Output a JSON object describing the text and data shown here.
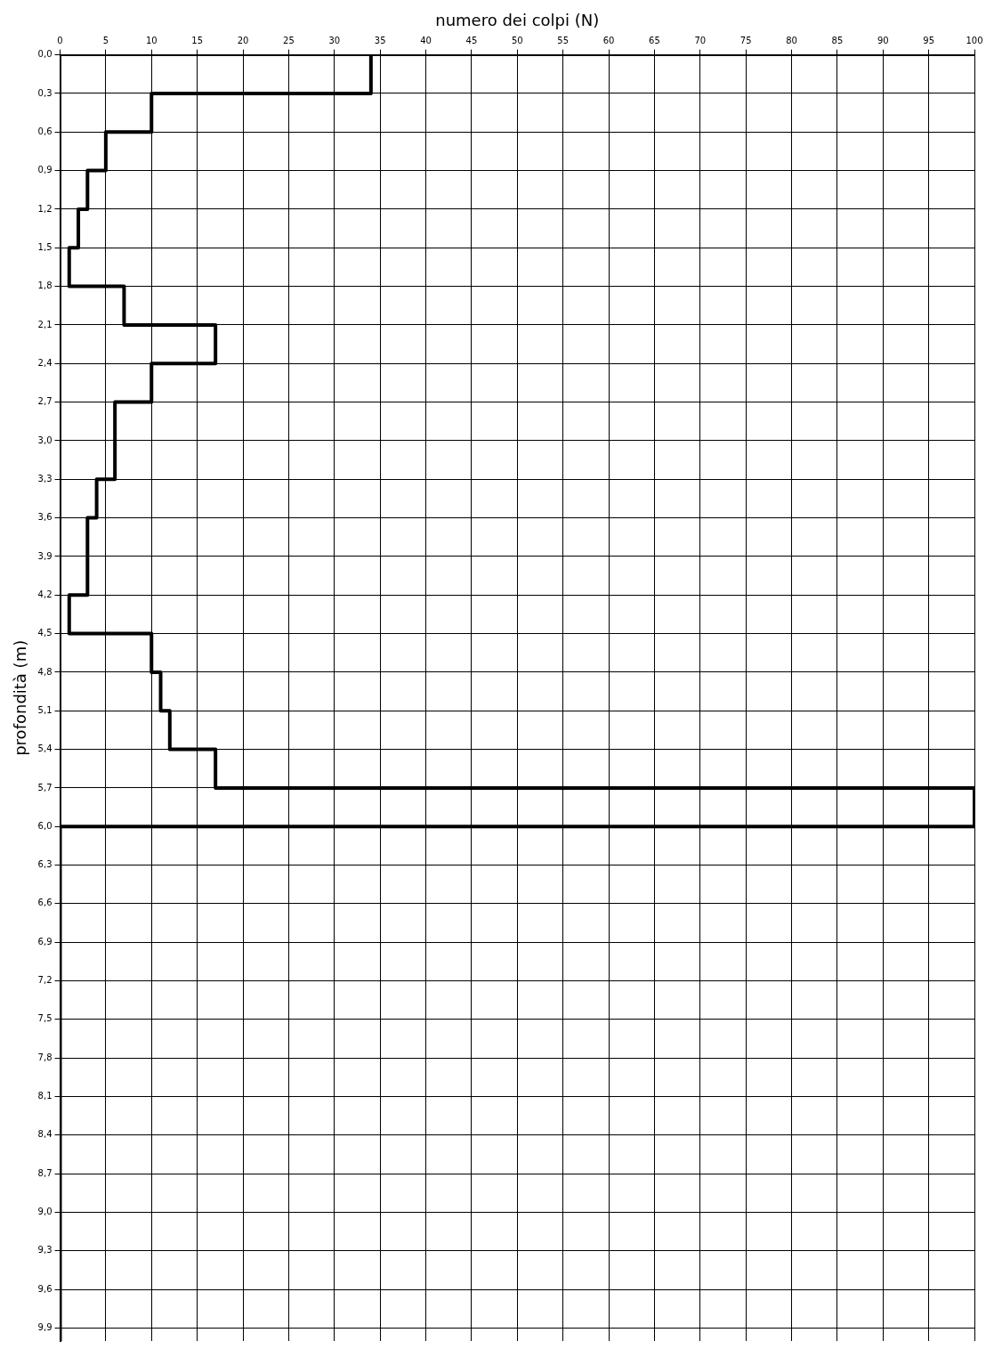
{
  "chart_data": {
    "type": "line",
    "xlabel": "numero dei colpi (N)",
    "ylabel": "profondità (m)",
    "series": [
      {
        "color": "#000000",
        "line_style": "solid",
        "x": [
          34,
          34,
          10,
          10,
          5,
          5,
          3,
          3,
          2,
          2,
          1,
          1,
          7,
          7,
          17,
          17,
          10,
          10,
          6,
          6,
          4,
          4,
          3,
          3,
          1,
          1,
          10,
          10,
          11,
          11,
          12,
          12,
          17,
          17,
          100,
          100,
          0,
          0
        ],
        "values": [
          0,
          0.3,
          0.3,
          0.6,
          0.6,
          0.9,
          0.9,
          1.2,
          1.2,
          1.5,
          1.5,
          1.8,
          1.8,
          2.1,
          2.1,
          2.4,
          2.4,
          2.7,
          2.7,
          3.3,
          3.3,
          3.6,
          3.6,
          4.2,
          4.2,
          4.5,
          4.5,
          4.8,
          4.8,
          5.1,
          5.1,
          5.4,
          5.4,
          5.7,
          5.7,
          6.0,
          6.0,
          10
        ]
      }
    ],
    "xlim": [
      0,
      100
    ],
    "xticks": [
      0,
      5,
      10,
      15,
      20,
      25,
      30,
      35,
      40,
      45,
      50,
      55,
      60,
      65,
      70,
      75,
      80,
      85,
      90,
      95,
      100
    ],
    "ylim": [
      10,
      0
    ],
    "yticks": [
      {
        "value": 0,
        "label": "0,0"
      },
      {
        "value": 0.3,
        "label": "0,3"
      },
      {
        "value": 0.6,
        "label": "0,6"
      },
      {
        "value": 0.9,
        "label": "0,9"
      },
      {
        "value": 1.2,
        "label": "1,2"
      },
      {
        "value": 1.5,
        "label": "1,5"
      },
      {
        "value": 1.8,
        "label": "1,8"
      },
      {
        "value": 2.1,
        "label": "2,1"
      },
      {
        "value": 2.4,
        "label": "2,4"
      },
      {
        "value": 2.7,
        "label": "2,7"
      },
      {
        "value": 3.0,
        "label": "3,0"
      },
      {
        "value": 3.3,
        "label": "3,3"
      },
      {
        "value": 3.6,
        "label": "3,6"
      },
      {
        "value": 3.9,
        "label": "3,9"
      },
      {
        "value": 4.2,
        "label": "4,2"
      },
      {
        "value": 4.5,
        "label": "4,5"
      },
      {
        "value": 4.8,
        "label": "4,8"
      },
      {
        "value": 5.1,
        "label": "5,1"
      },
      {
        "value": 5.4,
        "label": "5,4"
      },
      {
        "value": 5.7,
        "label": "5,7"
      },
      {
        "value": 6.0,
        "label": "6,0"
      },
      {
        "value": 6.3,
        "label": "6,3"
      },
      {
        "value": 6.6,
        "label": "6,6"
      },
      {
        "value": 6.9,
        "label": "6,9"
      },
      {
        "value": 7.2,
        "label": "7,2"
      },
      {
        "value": 7.5,
        "label": "7,5"
      },
      {
        "value": 7.8,
        "label": "7,8"
      },
      {
        "value": 8.1,
        "label": "8,1"
      },
      {
        "value": 8.4,
        "label": "8,4"
      },
      {
        "value": 8.7,
        "label": "8,7"
      },
      {
        "value": 9.0,
        "label": "9,0"
      },
      {
        "value": 9.3,
        "label": "9,3"
      },
      {
        "value": 9.6,
        "label": "9,6"
      },
      {
        "value": 9.9,
        "label": "9,9"
      }
    ],
    "grid": true,
    "legend": false,
    "marker": "none"
  }
}
